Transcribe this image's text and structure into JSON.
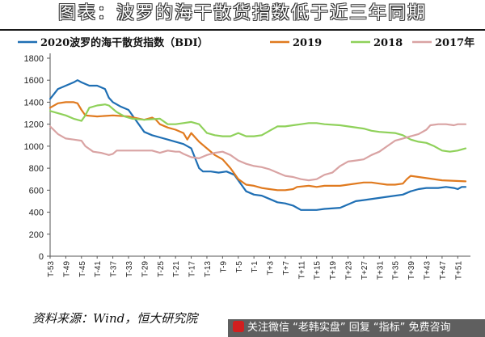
{
  "title": "图表：波罗的海干散货指数低于近三年同期",
  "source": "资料来源：Wind，恒大研究院",
  "watermark": "关注微信 “老韩实盘” 回复 “指标” 免费咨询",
  "colors": {
    "s2020": "#1f6fb4",
    "s2019": "#e07a1f",
    "s2018": "#8fd15a",
    "s2017": "#d9a3a3"
  },
  "chart_data": {
    "type": "line",
    "ylim": [
      0,
      1800
    ],
    "yticks": [
      0,
      200,
      400,
      600,
      800,
      1000,
      1200,
      1400,
      1600,
      1800
    ],
    "x_count": 107,
    "x_tick_labels": [
      "T-53",
      "T-49",
      "T-45",
      "T-41",
      "T-37",
      "T-33",
      "T-29",
      "T-25",
      "T-21",
      "T-17",
      "T-13",
      "T-9",
      "T-5",
      "T-1",
      "T+3",
      "T+7",
      "T+11",
      "T+15",
      "T+19",
      "T+23",
      "T+27",
      "T+31",
      "T+35",
      "T+39",
      "T+43",
      "T+47",
      "T+51"
    ],
    "legend_position": "top",
    "series": [
      {
        "name": "2020波罗的海干散货指数（BDI）",
        "color": "#1f6fb4",
        "anchors": [
          [
            0,
            1430
          ],
          [
            2,
            1520
          ],
          [
            4,
            1550
          ],
          [
            6,
            1580
          ],
          [
            7,
            1600
          ],
          [
            8,
            1580
          ],
          [
            10,
            1550
          ],
          [
            12,
            1550
          ],
          [
            14,
            1520
          ],
          [
            15,
            1440
          ],
          [
            16,
            1400
          ],
          [
            18,
            1360
          ],
          [
            20,
            1330
          ],
          [
            22,
            1230
          ],
          [
            24,
            1130
          ],
          [
            26,
            1100
          ],
          [
            28,
            1080
          ],
          [
            30,
            1060
          ],
          [
            32,
            1040
          ],
          [
            34,
            1020
          ],
          [
            36,
            980
          ],
          [
            38,
            800
          ],
          [
            39,
            770
          ],
          [
            41,
            770
          ],
          [
            43,
            760
          ],
          [
            45,
            770
          ],
          [
            47,
            740
          ],
          [
            49,
            640
          ],
          [
            50,
            590
          ],
          [
            52,
            560
          ],
          [
            54,
            550
          ],
          [
            56,
            520
          ],
          [
            58,
            490
          ],
          [
            60,
            480
          ],
          [
            62,
            460
          ],
          [
            63,
            440
          ],
          [
            64,
            420
          ],
          [
            68,
            420
          ],
          [
            70,
            430
          ],
          [
            74,
            440
          ],
          [
            76,
            470
          ],
          [
            78,
            500
          ],
          [
            80,
            510
          ],
          [
            84,
            530
          ],
          [
            86,
            540
          ],
          [
            90,
            560
          ],
          [
            92,
            590
          ],
          [
            94,
            610
          ],
          [
            96,
            620
          ],
          [
            99,
            620
          ],
          [
            101,
            630
          ],
          [
            103,
            620
          ],
          [
            104,
            610
          ],
          [
            105,
            630
          ],
          [
            106,
            630
          ]
        ]
      },
      {
        "name": "2019",
        "color": "#e07a1f",
        "anchors": [
          [
            0,
            1350
          ],
          [
            2,
            1390
          ],
          [
            4,
            1400
          ],
          [
            6,
            1400
          ],
          [
            7,
            1390
          ],
          [
            8,
            1330
          ],
          [
            9,
            1280
          ],
          [
            12,
            1270
          ],
          [
            16,
            1280
          ],
          [
            20,
            1270
          ],
          [
            24,
            1240
          ],
          [
            26,
            1260
          ],
          [
            27,
            1240
          ],
          [
            28,
            1200
          ],
          [
            30,
            1170
          ],
          [
            32,
            1150
          ],
          [
            34,
            1120
          ],
          [
            35,
            1060
          ],
          [
            36,
            1120
          ],
          [
            37,
            1080
          ],
          [
            38,
            1040
          ],
          [
            40,
            980
          ],
          [
            42,
            920
          ],
          [
            44,
            880
          ],
          [
            46,
            800
          ],
          [
            48,
            700
          ],
          [
            50,
            650
          ],
          [
            52,
            640
          ],
          [
            54,
            620
          ],
          [
            56,
            610
          ],
          [
            58,
            600
          ],
          [
            60,
            600
          ],
          [
            62,
            610
          ],
          [
            63,
            630
          ],
          [
            66,
            640
          ],
          [
            68,
            630
          ],
          [
            70,
            640
          ],
          [
            74,
            640
          ],
          [
            76,
            650
          ],
          [
            80,
            670
          ],
          [
            82,
            670
          ],
          [
            84,
            660
          ],
          [
            86,
            650
          ],
          [
            88,
            650
          ],
          [
            90,
            660
          ],
          [
            91,
            700
          ],
          [
            92,
            730
          ],
          [
            94,
            720
          ],
          [
            96,
            710
          ],
          [
            100,
            690
          ],
          [
            106,
            680
          ]
        ]
      },
      {
        "name": "2018",
        "color": "#8fd15a",
        "anchors": [
          [
            0,
            1320
          ],
          [
            2,
            1300
          ],
          [
            4,
            1280
          ],
          [
            6,
            1250
          ],
          [
            8,
            1230
          ],
          [
            9,
            1280
          ],
          [
            10,
            1350
          ],
          [
            12,
            1370
          ],
          [
            14,
            1380
          ],
          [
            15,
            1370
          ],
          [
            17,
            1310
          ],
          [
            19,
            1270
          ],
          [
            21,
            1250
          ],
          [
            24,
            1240
          ],
          [
            28,
            1250
          ],
          [
            30,
            1200
          ],
          [
            32,
            1200
          ],
          [
            34,
            1210
          ],
          [
            36,
            1220
          ],
          [
            38,
            1200
          ],
          [
            40,
            1120
          ],
          [
            42,
            1100
          ],
          [
            44,
            1090
          ],
          [
            46,
            1090
          ],
          [
            48,
            1120
          ],
          [
            50,
            1090
          ],
          [
            52,
            1090
          ],
          [
            54,
            1100
          ],
          [
            56,
            1140
          ],
          [
            58,
            1180
          ],
          [
            60,
            1180
          ],
          [
            62,
            1190
          ],
          [
            64,
            1200
          ],
          [
            66,
            1210
          ],
          [
            68,
            1210
          ],
          [
            70,
            1200
          ],
          [
            74,
            1190
          ],
          [
            76,
            1180
          ],
          [
            80,
            1160
          ],
          [
            82,
            1140
          ],
          [
            84,
            1130
          ],
          [
            88,
            1120
          ],
          [
            90,
            1100
          ],
          [
            92,
            1060
          ],
          [
            94,
            1040
          ],
          [
            96,
            1030
          ],
          [
            98,
            1000
          ],
          [
            100,
            960
          ],
          [
            102,
            950
          ],
          [
            104,
            960
          ],
          [
            106,
            980
          ]
        ]
      },
      {
        "name": "2017年",
        "color": "#d9a3a3",
        "anchors": [
          [
            0,
            1180
          ],
          [
            2,
            1110
          ],
          [
            4,
            1070
          ],
          [
            6,
            1060
          ],
          [
            8,
            1050
          ],
          [
            9,
            1000
          ],
          [
            11,
            950
          ],
          [
            13,
            940
          ],
          [
            15,
            920
          ],
          [
            16,
            930
          ],
          [
            17,
            960
          ],
          [
            20,
            960
          ],
          [
            24,
            960
          ],
          [
            26,
            960
          ],
          [
            28,
            940
          ],
          [
            30,
            960
          ],
          [
            32,
            950
          ],
          [
            33,
            950
          ],
          [
            34,
            930
          ],
          [
            36,
            900
          ],
          [
            38,
            890
          ],
          [
            40,
            920
          ],
          [
            42,
            940
          ],
          [
            44,
            950
          ],
          [
            46,
            920
          ],
          [
            48,
            870
          ],
          [
            50,
            840
          ],
          [
            52,
            820
          ],
          [
            54,
            810
          ],
          [
            56,
            790
          ],
          [
            58,
            760
          ],
          [
            60,
            730
          ],
          [
            62,
            720
          ],
          [
            64,
            700
          ],
          [
            66,
            690
          ],
          [
            68,
            700
          ],
          [
            70,
            740
          ],
          [
            72,
            760
          ],
          [
            74,
            820
          ],
          [
            76,
            860
          ],
          [
            78,
            870
          ],
          [
            80,
            880
          ],
          [
            82,
            920
          ],
          [
            84,
            950
          ],
          [
            86,
            1000
          ],
          [
            88,
            1050
          ],
          [
            90,
            1070
          ],
          [
            92,
            1090
          ],
          [
            94,
            1110
          ],
          [
            96,
            1150
          ],
          [
            97,
            1190
          ],
          [
            99,
            1200
          ],
          [
            101,
            1200
          ],
          [
            103,
            1190
          ],
          [
            104,
            1200
          ],
          [
            106,
            1200
          ]
        ]
      }
    ]
  }
}
